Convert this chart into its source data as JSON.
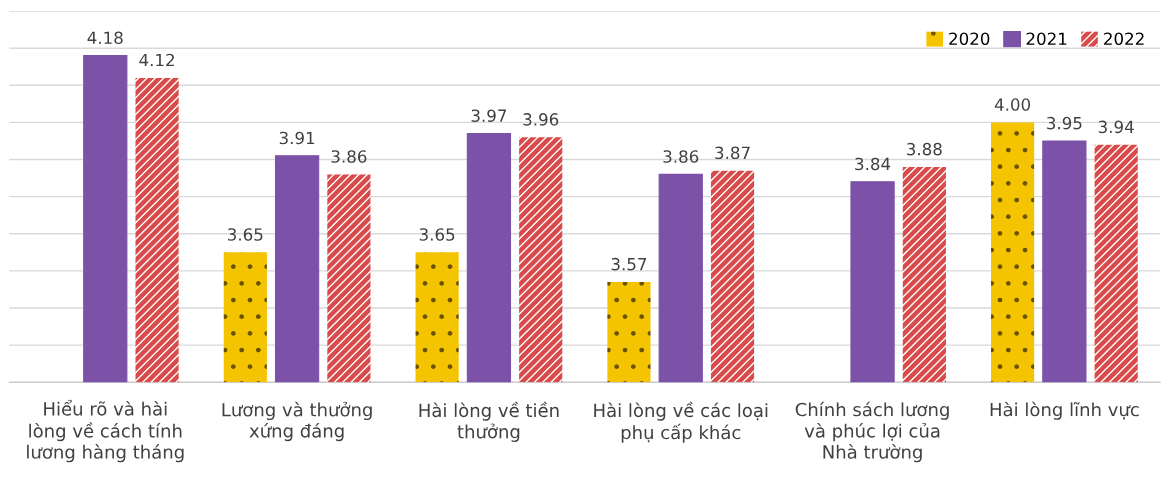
{
  "chart_data": {
    "type": "bar",
    "categories": [
      "Hiểu rõ và hài\nlòng về cách tính\nlương hàng tháng",
      "Lương và thưởng\nxứng đáng",
      "Hài lòng về tiền\nthưởng",
      "Hài lòng về các loại\nphụ cấp khác",
      "Chính sách lương\nvà phúc lợi của\nNhà trường",
      "Hài lòng lĩnh vực"
    ],
    "series": [
      {
        "name": "2020",
        "color": "#f5c400",
        "values": [
          null,
          3.65,
          3.65,
          3.57,
          null,
          4.0
        ],
        "value_labels": [
          null,
          "3.65",
          "3.65",
          "3.57",
          null,
          "4.00"
        ]
      },
      {
        "name": "2021",
        "color": "#7b52a8",
        "values": [
          4.18,
          3.91,
          3.97,
          3.86,
          3.84,
          3.95
        ],
        "value_labels": [
          "4.18",
          "3.91",
          "3.97",
          "3.86",
          "3.84",
          "3.95"
        ]
      },
      {
        "name": "2022",
        "color": "#d94a4a",
        "values": [
          4.12,
          3.86,
          3.96,
          3.87,
          3.88,
          3.94
        ],
        "value_labels": [
          "4.12",
          "3.86",
          "3.96",
          "3.87",
          "3.88",
          "3.94"
        ]
      }
    ],
    "ylim": [
      3.3,
      4.3
    ],
    "yticks": [
      {
        "value": 3.3,
        "label": null
      },
      {
        "value": 3.4,
        "label": null
      },
      {
        "value": 3.5,
        "label": null
      },
      {
        "value": 3.6,
        "label": null
      },
      {
        "value": 3.7,
        "label": null
      },
      {
        "value": 3.8,
        "label": null
      },
      {
        "value": 3.9,
        "label": null
      },
      {
        "value": 4.0,
        "label": null
      },
      {
        "value": 4.1,
        "label": null
      },
      {
        "value": 4.2,
        "label": null
      },
      {
        "value": 4.3,
        "label": null
      }
    ],
    "tick_labels": "x",
    "grid": "y",
    "legend": "top right"
  }
}
